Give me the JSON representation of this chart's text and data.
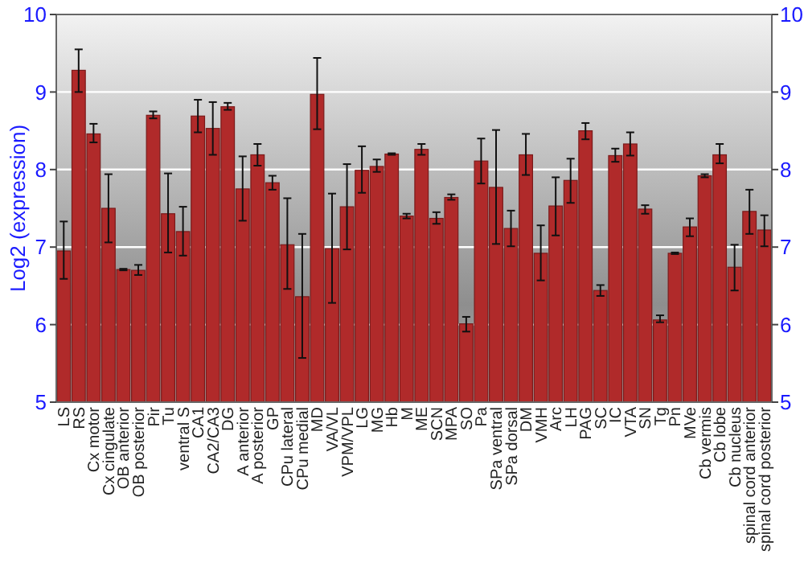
{
  "chart_data": {
    "type": "bar",
    "ylabel": "Log2 (expression)",
    "categories": [
      "LS",
      "RS",
      "Cx motor",
      "Cx cingulate",
      "OB anterior",
      "OB posterior",
      "Pir",
      "Tu",
      "ventral S",
      "CA1",
      "CA2/CA3",
      "DG",
      "A anterior",
      "A posterior",
      "GP",
      "CPu lateral",
      "CPu medial",
      "MD",
      "VA/VL",
      "VPM/VPL",
      "LG",
      "MG",
      "Hb",
      "M",
      "ME",
      "SCN",
      "MPA",
      "SO",
      "Pa",
      "SPa ventral",
      "SPa dorsal",
      "DM",
      "VMH",
      "Arc",
      "LH",
      "PAG",
      "SC",
      "IC",
      "VTA",
      "SN",
      "Tg",
      "Pn",
      "MVe",
      "Cb vermis",
      "Cb lobe",
      "Cb nucleus",
      "spinal cord anterior",
      "spinal cord posterior"
    ],
    "values": [
      6.95,
      9.28,
      8.46,
      7.5,
      6.71,
      6.7,
      8.7,
      7.43,
      7.2,
      8.69,
      8.53,
      8.81,
      7.75,
      8.19,
      7.83,
      7.03,
      6.36,
      8.97,
      6.98,
      7.52,
      7.99,
      8.04,
      8.2,
      7.4,
      8.26,
      7.37,
      7.64,
      6.01,
      8.11,
      7.77,
      7.24,
      8.19,
      6.92,
      7.53,
      7.86,
      8.5,
      6.44,
      8.18,
      8.33,
      7.49,
      6.06,
      6.92,
      7.26,
      7.92,
      8.19,
      6.74,
      7.46,
      7.22
    ],
    "errors": [
      [
        6.59,
        7.33
      ],
      [
        9.0,
        9.55
      ],
      [
        8.35,
        8.59
      ],
      [
        7.06,
        7.94
      ],
      [
        6.7,
        6.72
      ],
      [
        6.64,
        6.77
      ],
      [
        8.66,
        8.75
      ],
      [
        6.93,
        7.95
      ],
      [
        6.89,
        7.52
      ],
      [
        8.48,
        8.9
      ],
      [
        8.19,
        8.87
      ],
      [
        8.77,
        8.86
      ],
      [
        7.34,
        8.17
      ],
      [
        8.05,
        8.33
      ],
      [
        7.74,
        7.92
      ],
      [
        6.46,
        7.63
      ],
      [
        5.57,
        7.17
      ],
      [
        8.52,
        9.44
      ],
      [
        6.28,
        7.69
      ],
      [
        6.97,
        8.07
      ],
      [
        7.7,
        8.3
      ],
      [
        7.97,
        8.13
      ],
      [
        8.19,
        8.21
      ],
      [
        7.37,
        7.43
      ],
      [
        8.19,
        8.33
      ],
      [
        7.3,
        7.45
      ],
      [
        7.61,
        7.68
      ],
      [
        5.91,
        6.1
      ],
      [
        7.82,
        8.4
      ],
      [
        7.04,
        8.51
      ],
      [
        7.01,
        7.47
      ],
      [
        7.93,
        8.46
      ],
      [
        6.57,
        7.28
      ],
      [
        7.15,
        7.9
      ],
      [
        7.57,
        8.14
      ],
      [
        8.39,
        8.6
      ],
      [
        6.37,
        6.51
      ],
      [
        8.1,
        8.27
      ],
      [
        8.18,
        8.48
      ],
      [
        7.43,
        7.54
      ],
      [
        6.03,
        6.12
      ],
      [
        6.91,
        6.93
      ],
      [
        7.14,
        7.37
      ],
      [
        7.9,
        7.94
      ],
      [
        8.08,
        8.33
      ],
      [
        6.44,
        7.03
      ],
      [
        7.17,
        7.74
      ],
      [
        7.01,
        7.41
      ]
    ],
    "color": "#b02a2a",
    "ylim": [
      5,
      10
    ],
    "yticks": [
      5,
      6,
      7,
      8,
      9,
      10
    ],
    "y2lim": [
      5,
      10
    ],
    "y2ticks": [
      5,
      6,
      7,
      8,
      9,
      10
    ],
    "grid": "y"
  }
}
